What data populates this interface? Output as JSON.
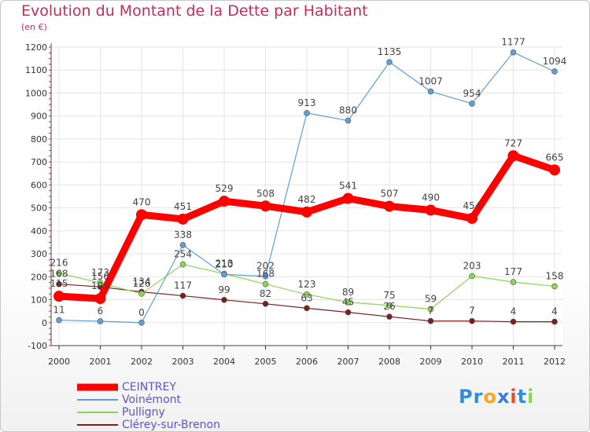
{
  "chart_data": {
    "type": "line",
    "title": "Evolution du Montant de la Dette par Habitant",
    "subtitle": "(en €)",
    "x": [
      "2000",
      "2001",
      "2002",
      "2003",
      "2004",
      "2005",
      "2006",
      "2007",
      "2008",
      "2009",
      "2010",
      "2011",
      "2012"
    ],
    "y_ticks": [
      "-100",
      "0",
      "100",
      "200",
      "300",
      "400",
      "500",
      "600",
      "700",
      "800",
      "900",
      "1000",
      "1100",
      "1200"
    ],
    "ylim": [
      -100,
      1200
    ],
    "grid": true,
    "legend_position": "bottom-left",
    "series": [
      {
        "name": "CEINTREY",
        "color": "#ff0000",
        "values": [
          115,
          105,
          470,
          451,
          529,
          508,
          482,
          541,
          507,
          490,
          454,
          727,
          665
        ],
        "labels": [
          "115",
          "105",
          "470",
          "451",
          "529",
          "508",
          "482",
          "541",
          "507",
          "490",
          "454",
          "727",
          "665"
        ]
      },
      {
        "name": "Voinémont",
        "color": "#5f9ed8",
        "values": [
          11,
          6,
          0,
          338,
          210,
          202,
          913,
          880,
          1135,
          1007,
          954,
          1177,
          1094
        ],
        "labels": [
          "11",
          "6",
          "0",
          "338",
          "210",
          "202",
          "913",
          "880",
          "1135",
          "1007",
          "954",
          "1177",
          "1094"
        ]
      },
      {
        "name": "Pulligny",
        "color": "#8ad654",
        "values": [
          216,
          173,
          126,
          254,
          213,
          168,
          123,
          89,
          75,
          59,
          203,
          177,
          158
        ],
        "labels": [
          "216",
          "173",
          "126",
          "254",
          "213",
          "168",
          "123",
          "89",
          "75",
          "59",
          "203",
          "177",
          "158"
        ]
      },
      {
        "name": "Clérey-sur-Brenon",
        "color": "#7a1f1f",
        "values": [
          168,
          156,
          134,
          117,
          99,
          82,
          63,
          45,
          26,
          7,
          7,
          4,
          4
        ],
        "labels": [
          "168",
          "156",
          "134",
          "117",
          "99",
          "82",
          "63",
          "45",
          "26",
          "7",
          "7",
          "4",
          "4"
        ]
      }
    ]
  },
  "logo": {
    "text": "Proxiti",
    "letters": [
      "P",
      "r",
      "o",
      "x",
      "i",
      "t",
      "i"
    ],
    "colors": [
      "#2f8fd8",
      "#2f8fd8",
      "#f5a623",
      "#3b7dd8",
      "#e84a2a",
      "#2f8fd8",
      "#8ad654"
    ]
  }
}
